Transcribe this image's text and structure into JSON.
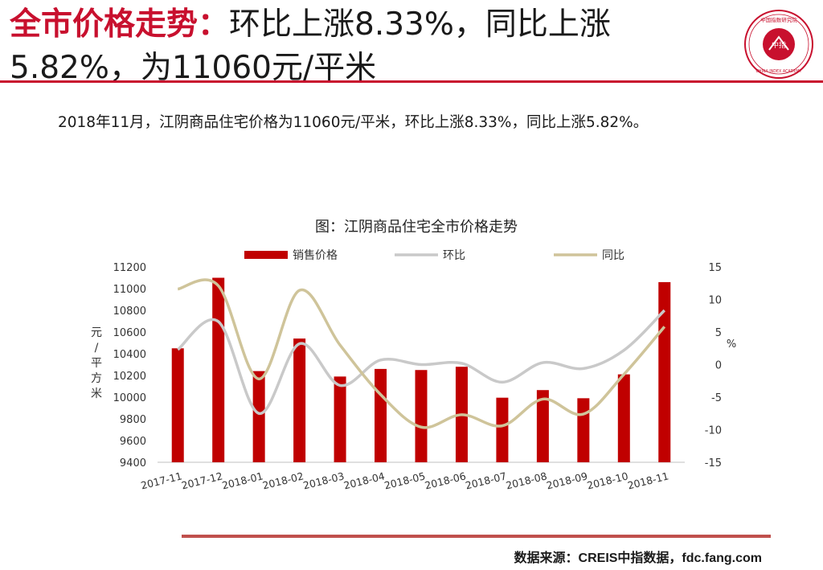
{
  "header": {
    "title_highlight": "全市价格走势：",
    "title_rest": "环比上涨8.33%，同比上涨5.82%，为11060元/平米",
    "logo_center_text": "中指",
    "logo_ring_text": "中国指数研究院",
    "logo_bottom_text": "CHINA INDEX ACADEMY"
  },
  "summary": "2018年11月，江阴商品住宅价格为11060元/平米，环比上涨8.33%，同比上涨5.82%。",
  "footer": {
    "source": "数据来源：CREIS中指数据，fdc.fang.com"
  },
  "colors": {
    "accent": "#c8102e",
    "bar": "#c00000",
    "mom_line": "#c9c9c9",
    "yoy_line": "#cfc49a",
    "footer_rule": "#c0504d"
  },
  "chart_data": {
    "type": "bar",
    "title": "图：江阴商品住宅全市价格走势",
    "categories": [
      "2017-11",
      "2017-12",
      "2018-01",
      "2018-02",
      "2018-03",
      "2018-04",
      "2018-05",
      "2018-06",
      "2018-07",
      "2018-08",
      "2018-09",
      "2018-10",
      "2018-11"
    ],
    "series": [
      {
        "name": "销售价格",
        "kind": "bar",
        "axis": "left",
        "values": [
          10450,
          11100,
          10240,
          10540,
          10190,
          10260,
          10250,
          10280,
          9995,
          10065,
          9990,
          10210,
          11060
        ]
      },
      {
        "name": "环比",
        "kind": "line",
        "axis": "right",
        "values": [
          2.3,
          6.6,
          -7.5,
          3.2,
          -3.2,
          0.7,
          0,
          0.2,
          -2.7,
          0.3,
          -0.6,
          2.2,
          8.33
        ]
      },
      {
        "name": "同比",
        "kind": "line",
        "axis": "right",
        "values": [
          11.6,
          12.1,
          -2.2,
          11.4,
          3.0,
          -4.6,
          -9.6,
          -7.7,
          -9.4,
          -5.3,
          -7.6,
          -1.5,
          5.82
        ]
      }
    ],
    "left_axis": {
      "label": "元/平方米",
      "min": 9400,
      "max": 11200,
      "ticks": [
        9400,
        9600,
        9800,
        10000,
        10200,
        10400,
        10600,
        10800,
        11000,
        11200
      ]
    },
    "right_axis": {
      "label": "%",
      "min": -15,
      "max": 15,
      "ticks": [
        -15,
        -10,
        -5,
        0,
        5,
        10,
        15
      ]
    },
    "legend_position": "top"
  }
}
